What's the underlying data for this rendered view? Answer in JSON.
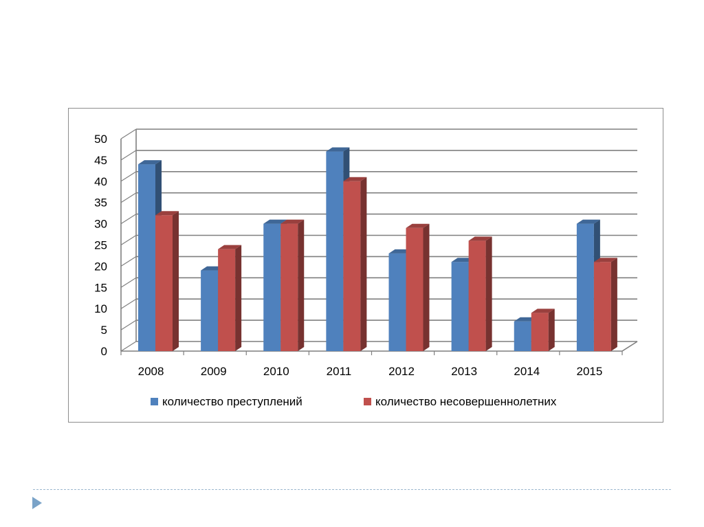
{
  "slide": {
    "nav_icon": "play-arrow-icon"
  },
  "chart_data": {
    "type": "bar",
    "three_d": true,
    "title": "",
    "xlabel": "",
    "ylabel": "",
    "categories": [
      "2008",
      "2009",
      "2010",
      "2011",
      "2012",
      "2013",
      "2014",
      "2015"
    ],
    "series": [
      {
        "name": "количество преступлений",
        "color": "#4f81bd",
        "values": [
          44,
          19,
          30,
          47,
          23,
          21,
          7,
          30
        ]
      },
      {
        "name": "количество несовершеннолетних",
        "color": "#c0504d",
        "values": [
          32,
          24,
          30,
          40,
          29,
          26,
          9,
          21
        ]
      }
    ],
    "ylim": [
      0,
      50
    ],
    "yticks": [
      "0",
      "5",
      "10",
      "15",
      "20",
      "25",
      "30",
      "35",
      "40",
      "45",
      "50"
    ],
    "grid": true,
    "legend_position": "bottom"
  }
}
